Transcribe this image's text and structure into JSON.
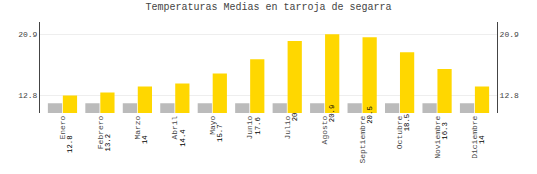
{
  "chart_data": {
    "type": "bar",
    "title": "Temperaturas Medias en tarroja de segarra",
    "categories": [
      "Enero",
      "Febrero",
      "Marzo",
      "Abril",
      "Mayo",
      "Junio",
      "Julio",
      "Agosto",
      "Septiembre",
      "Octubre",
      "Noviembre",
      "Diciembre"
    ],
    "series": [
      {
        "color": "#BBBBBB",
        "values": [
          11.8,
          11.8,
          11.8,
          11.8,
          11.8,
          11.8,
          11.8,
          11.8,
          11.8,
          11.8,
          11.8,
          11.8
        ]
      },
      {
        "color": "#FFD700",
        "data_labels": true,
        "values": [
          12.8,
          13.2,
          14.0,
          14.4,
          15.7,
          17.6,
          20.0,
          20.9,
          20.5,
          18.5,
          16.3,
          14.0
        ]
      }
    ],
    "ylim": [
      10.5,
      22.5
    ],
    "yticks": [
      12.8,
      20.9
    ],
    "y2lim": [
      10.5,
      22.5
    ],
    "y2ticks": [
      12.8,
      20.9
    ],
    "grid": true
  }
}
